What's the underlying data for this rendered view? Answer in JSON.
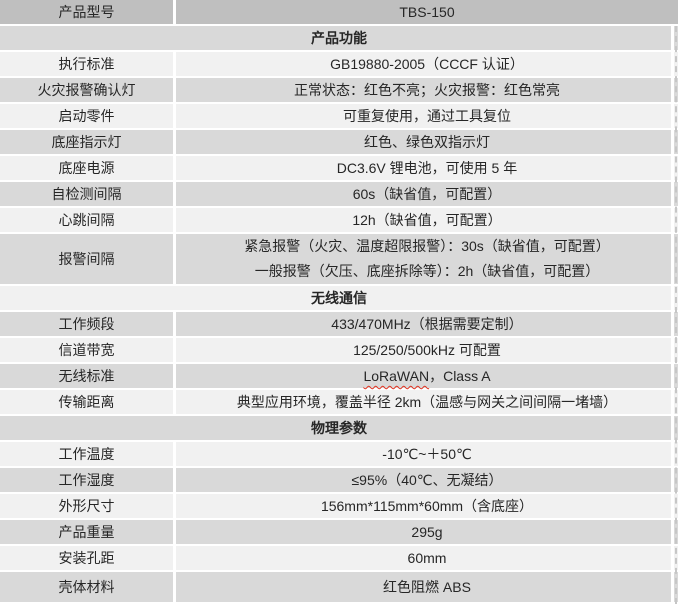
{
  "table": {
    "rows": [
      {
        "key": "product-model",
        "type": "data",
        "label": "产品型号",
        "value": "TBS-150",
        "shade": "dark"
      },
      {
        "key": "product-functions",
        "type": "section",
        "label": "产品功能",
        "shade": "gray"
      },
      {
        "key": "executive-standard",
        "type": "data",
        "label": "执行标准",
        "value": "GB19880-2005（CCCF 认证）",
        "shade": "light"
      },
      {
        "key": "fire-alarm-confirm-light",
        "type": "data",
        "label": "火灾报警确认灯",
        "value": "正常状态：红色不亮；火灾报警：红色常亮",
        "shade": "gray"
      },
      {
        "key": "activation-part",
        "type": "data",
        "label": "启动零件",
        "value": "可重复使用，通过工具复位",
        "shade": "light"
      },
      {
        "key": "base-indicator-light",
        "type": "data",
        "label": "底座指示灯",
        "value": "红色、绿色双指示灯",
        "shade": "gray"
      },
      {
        "key": "base-power",
        "type": "data",
        "label": "底座电源",
        "value": "DC3.6V 锂电池，可使用 5 年",
        "shade": "light"
      },
      {
        "key": "self-test-interval",
        "type": "data",
        "label": "自检测间隔",
        "value": "60s（缺省值，可配置）",
        "shade": "gray"
      },
      {
        "key": "heartbeat-interval",
        "type": "data",
        "label": "心跳间隔",
        "value": "12h（缺省值，可配置）",
        "shade": "light"
      },
      {
        "key": "alarm-interval",
        "type": "data",
        "label": "报警间隔",
        "lines": [
          "紧急报警（火灾、温度超限报警）：30s（缺省值，可配置）",
          "一般报警（欠压、底座拆除等）：2h（缺省值，可配置）"
        ],
        "shade": "gray",
        "tall": true
      },
      {
        "key": "wireless-communication",
        "type": "section",
        "label": "无线通信",
        "shade": "light"
      },
      {
        "key": "working-frequency-band",
        "type": "data",
        "label": "工作频段",
        "value": "433/470MHz（根据需要定制）",
        "shade": "gray"
      },
      {
        "key": "channel-bandwidth",
        "type": "data",
        "label": "信道带宽",
        "value": "125/250/500kHz 可配置",
        "shade": "light"
      },
      {
        "key": "wireless-standard",
        "type": "data",
        "label": "无线标准",
        "value_squiggle": "LoRaWAN",
        "value_rest": "，Class A",
        "shade": "gray"
      },
      {
        "key": "transmission-distance",
        "type": "data",
        "label": "传输距离",
        "value": "典型应用环境，覆盖半径 2km（温感与网关之间间隔一堵墙）",
        "shade": "light"
      },
      {
        "key": "physical-parameters",
        "type": "section",
        "label": "物理参数",
        "shade": "gray"
      },
      {
        "key": "working-temperature",
        "type": "data",
        "label": "工作温度",
        "value": "-10℃~＋50℃",
        "shade": "light"
      },
      {
        "key": "working-humidity",
        "type": "data",
        "label": "工作湿度",
        "value": "≤95%（40℃、无凝结）",
        "shade": "gray"
      },
      {
        "key": "dimensions",
        "type": "data",
        "label": "外形尺寸",
        "value": "156mm*115mm*60mm（含底座）",
        "shade": "light"
      },
      {
        "key": "product-weight",
        "type": "data",
        "label": "产品重量",
        "value": "295g",
        "shade": "gray"
      },
      {
        "key": "mounting-hole-distance",
        "type": "data",
        "label": "安装孔距",
        "value": "60mm",
        "shade": "light"
      },
      {
        "key": "shell-material",
        "type": "data",
        "label": "壳体材料",
        "value": "红色阻燃 ABS",
        "shade": "gray",
        "last": true
      }
    ]
  },
  "colors": {
    "row_dark": "#bfbfbf",
    "row_gray": "#d9d9d9",
    "row_light": "#f1f1f1",
    "divider": "#ffffff",
    "text": "#262626",
    "spellcheck_underline": "#e0301e",
    "right_dashed_gridline": "#c6c6c6"
  }
}
